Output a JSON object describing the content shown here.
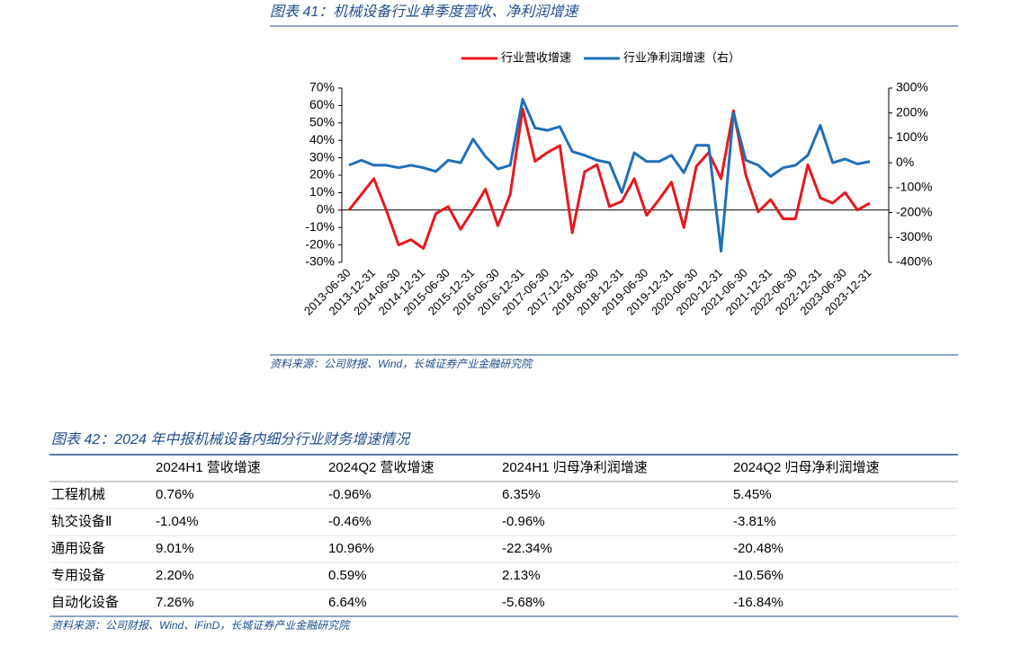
{
  "chart_data": {
    "type": "line",
    "title": "图表 41：机械设备行业单季度营收、净利润增速",
    "categories": [
      "2013-06-30",
      null,
      "2013-12-31",
      null,
      "2014-06-30",
      null,
      "2014-12-31",
      null,
      "2015-06-30",
      null,
      "2015-12-31",
      null,
      "2016-06-30",
      null,
      "2016-12-31",
      null,
      "2017-06-30",
      null,
      "2017-12-31",
      null,
      "2018-06-30",
      null,
      "2018-12-31",
      null,
      "2019-06-30",
      null,
      "2019-12-31",
      null,
      "2020-06-30",
      null,
      "2020-12-31",
      null,
      "2021-06-30",
      null,
      "2021-12-31",
      null,
      "2022-06-30",
      null,
      "2022-12-31",
      null,
      "2023-06-30",
      null,
      "2023-12-31"
    ],
    "series": [
      {
        "name": "行业营收增速",
        "color": "#e8171e",
        "values": [
          0,
          9,
          18,
          0,
          -20,
          -17,
          -22,
          -2,
          2,
          -11,
          0,
          12,
          -9,
          9,
          58,
          28,
          33,
          37,
          -13,
          22,
          26,
          2,
          5,
          18,
          -3,
          6,
          16,
          -10,
          25,
          33,
          18,
          57,
          20,
          -1,
          6,
          -5,
          -5,
          26,
          7,
          4,
          10,
          0,
          4
        ]
      },
      {
        "name": "行业净利润增速（右）",
        "color": "#1f6fb8",
        "axis": "y2",
        "values": [
          -10,
          10,
          -10,
          -10,
          -20,
          -10,
          -20,
          -35,
          10,
          0,
          95,
          25,
          -25,
          -10,
          255,
          140,
          130,
          145,
          45,
          30,
          10,
          0,
          -120,
          40,
          5,
          5,
          30,
          -40,
          70,
          70,
          -355,
          200,
          10,
          -10,
          -55,
          -20,
          -10,
          30,
          150,
          0,
          15,
          -5,
          5
        ]
      }
    ],
    "ylim": [
      -30,
      70
    ],
    "yticks": [
      {
        "value": -30,
        "label": "-30%"
      },
      {
        "value": -20,
        "label": "-20%"
      },
      {
        "value": -10,
        "label": "-10%"
      },
      {
        "value": 0,
        "label": "0%"
      },
      {
        "value": 10,
        "label": "10%"
      },
      {
        "value": 20,
        "label": "20%"
      },
      {
        "value": 30,
        "label": "30%"
      },
      {
        "value": 40,
        "label": "40%"
      },
      {
        "value": 50,
        "label": "50%"
      },
      {
        "value": 60,
        "label": "60%"
      },
      {
        "value": 70,
        "label": "70%"
      }
    ],
    "y2lim": [
      -400,
      300
    ],
    "y2ticks": [
      {
        "value": -400,
        "label": "-400%"
      },
      {
        "value": -300,
        "label": "-300%"
      },
      {
        "value": -200,
        "label": "-200%"
      },
      {
        "value": -100,
        "label": "-100%"
      },
      {
        "value": 0,
        "label": "0%"
      },
      {
        "value": 100,
        "label": "100%"
      },
      {
        "value": 200,
        "label": "200%"
      },
      {
        "value": 300,
        "label": "300%"
      }
    ],
    "legend": "top",
    "source": "资料来源：公司财报、Wind，长城证券产业金融研究院"
  },
  "table": {
    "title": "图表 42：2024 年中报机械设备内细分行业财务增速情况",
    "columns": [
      "",
      "2024H1 营收增速",
      "2024Q2 营收增速",
      "2024H1 归母净利润增速",
      "2024Q2 归母净利润增速"
    ],
    "rows": [
      [
        "工程机械",
        "0.76%",
        "-0.96%",
        "6.35%",
        "5.45%"
      ],
      [
        "轨交设备Ⅱ",
        "-1.04%",
        "-0.46%",
        "-0.96%",
        "-3.81%"
      ],
      [
        "通用设备",
        "9.01%",
        "10.96%",
        "-22.34%",
        "-20.48%"
      ],
      [
        "专用设备",
        "2.20%",
        "0.59%",
        "2.13%",
        "-10.56%"
      ],
      [
        "自动化设备",
        "7.26%",
        "6.64%",
        "-5.68%",
        "-16.84%"
      ]
    ],
    "source": "资料来源：公司财报、Wind、iFinD，长城证券产业金融研究院"
  }
}
